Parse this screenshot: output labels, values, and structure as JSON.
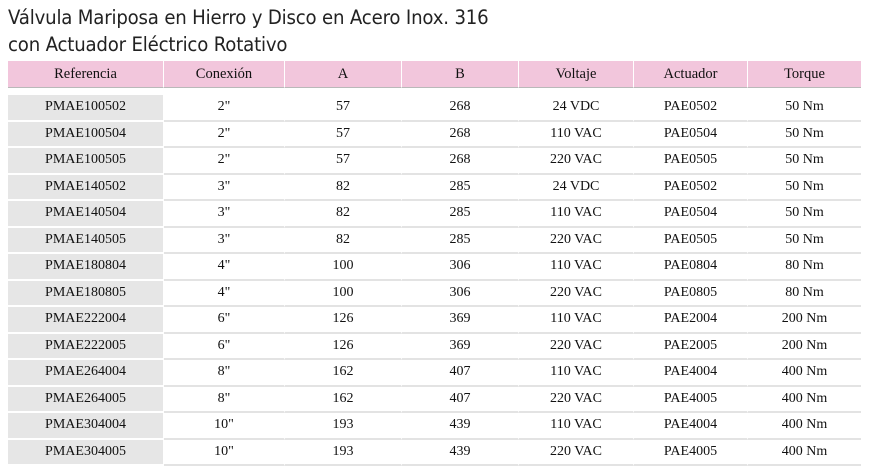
{
  "title": {
    "line1": "Válvula Mariposa en Hierro y Disco en Acero Inox. 316",
    "line2": "con Actuador Eléctrico Rotativo"
  },
  "table": {
    "headers": [
      "Referencia",
      "Conexión",
      "A",
      "B",
      "Voltaje",
      "Actuador",
      "Torque"
    ],
    "rows": [
      [
        "PMAE100502",
        "2\"",
        "57",
        "268",
        "24 VDC",
        "PAE0502",
        "50 Nm"
      ],
      [
        "PMAE100504",
        "2\"",
        "57",
        "268",
        "110 VAC",
        "PAE0504",
        "50 Nm"
      ],
      [
        "PMAE100505",
        "2\"",
        "57",
        "268",
        "220 VAC",
        "PAE0505",
        "50 Nm"
      ],
      [
        "PMAE140502",
        "3\"",
        "82",
        "285",
        "24 VDC",
        "PAE0502",
        "50 Nm"
      ],
      [
        "PMAE140504",
        "3\"",
        "82",
        "285",
        "110 VAC",
        "PAE0504",
        "50 Nm"
      ],
      [
        "PMAE140505",
        "3\"",
        "82",
        "285",
        "220 VAC",
        "PAE0505",
        "50 Nm"
      ],
      [
        "PMAE180804",
        "4\"",
        "100",
        "306",
        "110 VAC",
        "PAE0804",
        "80 Nm"
      ],
      [
        "PMAE180805",
        "4\"",
        "100",
        "306",
        "220 VAC",
        "PAE0805",
        "80 Nm"
      ],
      [
        "PMAE222004",
        "6\"",
        "126",
        "369",
        "110 VAC",
        "PAE2004",
        "200 Nm"
      ],
      [
        "PMAE222005",
        "6\"",
        "126",
        "369",
        "220 VAC",
        "PAE2005",
        "200 Nm"
      ],
      [
        "PMAE264004",
        "8\"",
        "162",
        "407",
        "110 VAC",
        "PAE4004",
        "400 Nm"
      ],
      [
        "PMAE264005",
        "8\"",
        "162",
        "407",
        "220 VAC",
        "PAE4005",
        "400 Nm"
      ],
      [
        "PMAE304004",
        "10\"",
        "193",
        "439",
        "110 VAC",
        "PAE4004",
        "400 Nm"
      ],
      [
        "PMAE304005",
        "10\"",
        "193",
        "439",
        "220 VAC",
        "PAE4005",
        "400 Nm"
      ]
    ]
  },
  "colors": {
    "header_bg": "#f2c6dc",
    "ref_bg": "#e6e6e6"
  }
}
